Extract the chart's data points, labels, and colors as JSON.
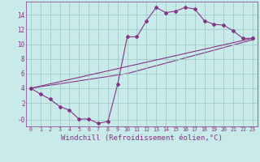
{
  "bg_color": "#c8eae8",
  "grid_color": "#a0ccca",
  "line_color": "#883388",
  "marker_color": "#883388",
  "xlabel": "Windchill (Refroidissement éolien,°C)",
  "xlabel_fontsize": 6.5,
  "xtick_labels": [
    "0",
    "1",
    "2",
    "3",
    "4",
    "5",
    "6",
    "7",
    "8",
    "9",
    "10",
    "11",
    "12",
    "13",
    "14",
    "15",
    "16",
    "17",
    "18",
    "19",
    "20",
    "21",
    "22",
    "23"
  ],
  "ytick_labels": [
    "-0",
    "2",
    "4",
    "6",
    "8",
    "10",
    "12",
    "14"
  ],
  "ytick_vals": [
    -0.3,
    2,
    4,
    6,
    8,
    10,
    12,
    14
  ],
  "ylim": [
    -1.2,
    15.8
  ],
  "xlim": [
    -0.5,
    23.5
  ],
  "line1_x": [
    0,
    1,
    2,
    3,
    4,
    5,
    6,
    7,
    8,
    9,
    10,
    11,
    12,
    13,
    14,
    15,
    16,
    17,
    18,
    19,
    20,
    21,
    22,
    23
  ],
  "line1_y": [
    4.0,
    3.2,
    2.5,
    1.5,
    1.0,
    -0.2,
    -0.2,
    -0.8,
    -0.5,
    4.5,
    11.0,
    11.0,
    13.2,
    15.0,
    14.3,
    14.5,
    15.0,
    14.8,
    13.2,
    12.7,
    12.6,
    11.8,
    10.8,
    10.8
  ],
  "line2_x": [
    0,
    23
  ],
  "line2_y": [
    4.0,
    10.8
  ],
  "line3_x": [
    0,
    10,
    23
  ],
  "line3_y": [
    4.0,
    6.0,
    10.6
  ]
}
